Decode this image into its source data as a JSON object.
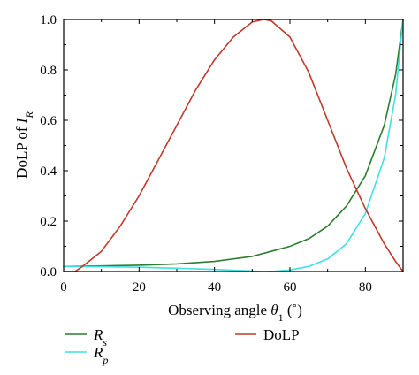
{
  "chart_data": {
    "type": "line",
    "xlabel": {
      "main": "Observing angle ",
      "var": "θ",
      "sub": "1",
      "unit": " (˚)"
    },
    "ylabel": {
      "main": "DoLP of ",
      "var": "I",
      "sub": "R"
    },
    "xlim": [
      0,
      90
    ],
    "ylim": [
      0,
      1
    ],
    "xticks": [
      0,
      20,
      40,
      60,
      80
    ],
    "yticks": [
      0.0,
      0.2,
      0.4,
      0.6,
      0.8,
      1.0
    ],
    "ytick_labels": [
      "0.0",
      "0.2",
      "0.4",
      "0.6",
      "0.8",
      "1.0"
    ],
    "grid": false,
    "legend_position": "bottom",
    "series": [
      {
        "key": "Rs",
        "legend_var": "R",
        "legend_sub": "s",
        "color": "#2e7d32",
        "x": [
          0,
          10,
          20,
          30,
          40,
          50,
          55,
          60,
          65,
          70,
          75,
          80,
          85,
          88,
          90
        ],
        "y": [
          0.02,
          0.022,
          0.025,
          0.03,
          0.04,
          0.06,
          0.08,
          0.1,
          0.13,
          0.18,
          0.26,
          0.38,
          0.58,
          0.78,
          1.0
        ]
      },
      {
        "key": "Rp",
        "legend_var": "R",
        "legend_sub": "p",
        "color": "#40e0e0",
        "x": [
          0,
          10,
          20,
          30,
          40,
          50,
          53,
          56,
          60,
          65,
          70,
          75,
          80,
          85,
          88,
          90
        ],
        "y": [
          0.02,
          0.019,
          0.017,
          0.013,
          0.008,
          0.002,
          0.0,
          0.001,
          0.006,
          0.02,
          0.05,
          0.11,
          0.23,
          0.45,
          0.7,
          1.0
        ]
      },
      {
        "key": "DoLP",
        "legend_text": "DoLP",
        "color": "#c0392b",
        "x": [
          0,
          3,
          5,
          10,
          15,
          20,
          25,
          30,
          35,
          40,
          45,
          50,
          53,
          55,
          60,
          65,
          70,
          75,
          80,
          85,
          88,
          90
        ],
        "y": [
          0.0,
          0.0,
          0.02,
          0.08,
          0.18,
          0.3,
          0.44,
          0.58,
          0.72,
          0.84,
          0.93,
          0.99,
          1.0,
          0.995,
          0.93,
          0.79,
          0.6,
          0.41,
          0.25,
          0.11,
          0.04,
          0.0
        ]
      }
    ]
  }
}
